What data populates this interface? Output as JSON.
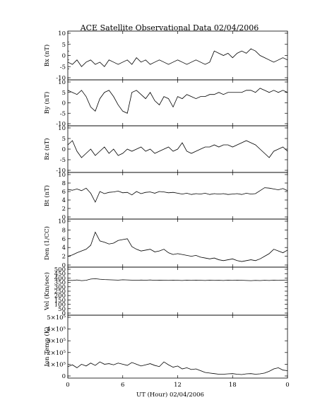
{
  "chart_data": {
    "type": "line",
    "title": "ACE Satellite Observational Data   02/04/2006",
    "xlabel": "UT (Hour)   02/04/2006",
    "x_ticks": [
      "0",
      "6",
      "12",
      "18",
      "0"
    ],
    "xlim": [
      0,
      24
    ],
    "grid": false,
    "line_color": "#000000",
    "panels": [
      {
        "name": "bx",
        "ylabel": "Bx (nT)",
        "ylim": [
          -10,
          10
        ],
        "yticks": [
          -10,
          -5,
          0,
          5,
          10
        ],
        "ytick_labels": [
          "-10",
          "-5",
          "0",
          "5",
          "10"
        ],
        "minor_ticks": [
          -6,
          -2,
          2,
          6
        ],
        "x": [
          0,
          0.5,
          1,
          1.5,
          2,
          2.5,
          3,
          3.5,
          4,
          4.5,
          5,
          5.5,
          6,
          6.5,
          7,
          7.5,
          8,
          8.5,
          9,
          9.5,
          10,
          10.5,
          11,
          11.5,
          12,
          12.5,
          13,
          13.5,
          14,
          14.5,
          15,
          15.5,
          16,
          16.5,
          17,
          17.5,
          18,
          18.5,
          19,
          19.5,
          20,
          20.5,
          21,
          21.5,
          22,
          22.5,
          23,
          23.5,
          24
        ],
        "values": [
          -3,
          -4,
          -2,
          -5,
          -3,
          -2,
          -4,
          -3,
          -5,
          -2,
          -3,
          -4,
          -3,
          -2,
          -4,
          -1,
          -3,
          -2,
          -4,
          -3,
          -2,
          -3,
          -4,
          -3,
          -2,
          -3,
          -4,
          -3,
          -2,
          -3,
          -4,
          -3,
          2,
          1,
          0,
          1,
          -1,
          1,
          2,
          1,
          3,
          2,
          0,
          -1,
          -2,
          -3,
          -2,
          -1,
          -2
        ]
      },
      {
        "name": "by",
        "ylabel": "By (nT)",
        "ylim": [
          -10,
          10
        ],
        "yticks": [
          -10,
          -5,
          0,
          5,
          10
        ],
        "ytick_labels": [
          "-10",
          "-5",
          "0",
          "5",
          "10"
        ],
        "minor_ticks": [],
        "x": [
          0,
          0.5,
          1,
          1.5,
          2,
          2.5,
          3,
          3.5,
          4,
          4.5,
          5,
          5.5,
          6,
          6.5,
          7,
          7.5,
          8,
          8.5,
          9,
          9.5,
          10,
          10.5,
          11,
          11.5,
          12,
          12.5,
          13,
          13.5,
          14,
          14.5,
          15,
          15.5,
          16,
          16.5,
          17,
          17.5,
          18,
          18.5,
          19,
          19.5,
          20,
          20.5,
          21,
          21.5,
          22,
          22.5,
          23,
          23.5,
          24
        ],
        "values": [
          6,
          5,
          4,
          6,
          3,
          -2,
          -4,
          2,
          5,
          6,
          3,
          -1,
          -4,
          -5,
          5,
          6,
          4,
          2,
          5,
          1,
          -1,
          3,
          2,
          -2,
          3,
          2,
          4,
          3,
          2,
          3,
          3,
          4,
          4,
          5,
          4,
          5,
          5,
          5,
          5,
          6,
          6,
          5,
          7,
          6,
          5,
          6,
          5,
          6,
          5
        ]
      },
      {
        "name": "bz",
        "ylabel": "Bz (nT)",
        "ylim": [
          -10,
          10
        ],
        "yticks": [
          -10,
          -5,
          0,
          5,
          10
        ],
        "ytick_labels": [
          "-10",
          "-5",
          "0",
          "5",
          "10"
        ],
        "minor_ticks": [],
        "x": [
          0,
          0.5,
          1,
          1.5,
          2,
          2.5,
          3,
          3.5,
          4,
          4.5,
          5,
          5.5,
          6,
          6.5,
          7,
          7.5,
          8,
          8.5,
          9,
          9.5,
          10,
          10.5,
          11,
          11.5,
          12,
          12.5,
          13,
          13.5,
          14,
          14.5,
          15,
          15.5,
          16,
          16.5,
          17,
          17.5,
          18,
          18.5,
          19,
          19.5,
          20,
          20.5,
          21,
          21.5,
          22,
          22.5,
          23,
          23.5,
          24
        ],
        "values": [
          2,
          4,
          -1,
          -4,
          -2,
          0,
          -3,
          -1,
          1,
          -2,
          0,
          -3,
          -2,
          0,
          -1,
          0,
          1,
          -1,
          0,
          -2,
          -1,
          0,
          1,
          -1,
          0,
          3,
          -1,
          -2,
          -1,
          0,
          1,
          1,
          2,
          1,
          2,
          2,
          1,
          2,
          3,
          4,
          3,
          2,
          0,
          -2,
          -4,
          -1,
          0,
          1,
          -1
        ]
      },
      {
        "name": "bt",
        "ylabel": "Bt (nT)",
        "ylim": [
          0,
          10
        ],
        "yticks": [
          0,
          2,
          4,
          6,
          8,
          10
        ],
        "ytick_labels": [
          "0",
          "2",
          "4",
          "6",
          "8",
          "10"
        ],
        "minor_ticks": [],
        "x": [
          0,
          0.5,
          1,
          1.5,
          2,
          2.5,
          3,
          3.5,
          4,
          4.5,
          5,
          5.5,
          6,
          6.5,
          7,
          7.5,
          8,
          8.5,
          9,
          9.5,
          10,
          10.5,
          11,
          11.5,
          12,
          12.5,
          13,
          13.5,
          14,
          14.5,
          15,
          15.5,
          16,
          16.5,
          17,
          17.5,
          18,
          18.5,
          19,
          19.5,
          20,
          20.5,
          21,
          21.5,
          22,
          22.5,
          23,
          23.5,
          24
        ],
        "values": [
          6.5,
          6.3,
          6.6,
          6.2,
          6.8,
          5.6,
          3.5,
          6.0,
          5.5,
          5.8,
          5.9,
          6.1,
          5.7,
          5.8,
          5.2,
          6.0,
          5.5,
          5.8,
          5.9,
          5.6,
          6.0,
          5.9,
          5.7,
          5.8,
          5.6,
          5.4,
          5.6,
          5.3,
          5.5,
          5.4,
          5.6,
          5.3,
          5.5,
          5.4,
          5.5,
          5.3,
          5.4,
          5.5,
          5.3,
          5.6,
          5.4,
          5.5,
          6.2,
          6.9,
          6.8,
          6.6,
          6.4,
          6.7,
          6.2
        ]
      },
      {
        "name": "den",
        "ylabel": "Den (1/CC)",
        "ylim": [
          0,
          10
        ],
        "yticks": [
          0,
          2,
          4,
          6,
          8,
          10
        ],
        "ytick_labels": [
          "0",
          "2",
          "4",
          "6",
          "8",
          "10"
        ],
        "minor_ticks": [],
        "x": [
          0,
          0.5,
          1,
          1.5,
          2,
          2.5,
          3,
          3.5,
          4,
          4.5,
          5,
          5.5,
          6,
          6.5,
          7,
          7.5,
          8,
          8.5,
          9,
          9.5,
          10,
          10.5,
          11,
          11.5,
          12,
          12.5,
          13,
          13.5,
          14,
          14.5,
          15,
          15.5,
          16,
          16.5,
          17,
          17.5,
          18,
          18.5,
          19,
          19.5,
          20,
          20.5,
          21,
          21.5,
          22,
          22.5,
          23,
          23.5,
          24
        ],
        "values": [
          2.0,
          2.3,
          2.8,
          3.2,
          3.6,
          4.5,
          7.5,
          5.5,
          5.2,
          4.8,
          5.0,
          5.6,
          5.8,
          6.0,
          4.2,
          3.6,
          3.2,
          3.4,
          3.6,
          3.0,
          3.2,
          3.6,
          2.8,
          2.4,
          2.6,
          2.4,
          2.2,
          2.0,
          2.2,
          1.8,
          1.6,
          1.4,
          1.6,
          1.2,
          1.0,
          1.2,
          1.4,
          1.0,
          0.8,
          1.0,
          1.2,
          1.0,
          1.4,
          2.0,
          2.6,
          3.6,
          3.2,
          2.8,
          3.4
        ]
      },
      {
        "name": "vel",
        "ylabel": "Vel (Km/sec)",
        "ylim": [
          0,
          500
        ],
        "yticks": [
          0,
          50,
          100,
          150,
          200,
          250,
          300,
          350,
          400,
          450,
          500
        ],
        "ytick_labels": [
          "0",
          "50",
          "100",
          "150",
          "200",
          "250",
          "300",
          "350",
          "400",
          "450",
          "500"
        ],
        "minor_ticks": [],
        "x": [
          0,
          0.5,
          1,
          1.5,
          2,
          2.5,
          3,
          3.5,
          4,
          4.5,
          5,
          5.5,
          6,
          6.5,
          7,
          7.5,
          8,
          8.5,
          9,
          9.5,
          10,
          10.5,
          11,
          11.5,
          12,
          12.5,
          13,
          13.5,
          14,
          14.5,
          15,
          15.5,
          16,
          16.5,
          17,
          17.5,
          18,
          18.5,
          19,
          19.5,
          20,
          20.5,
          21,
          21.5,
          22,
          22.5,
          23,
          23.5,
          24
        ],
        "values": [
          375,
          372,
          378,
          370,
          374,
          388,
          392,
          386,
          382,
          380,
          378,
          376,
          380,
          378,
          376,
          374,
          377,
          375,
          378,
          374,
          376,
          375,
          373,
          376,
          374,
          372,
          375,
          373,
          376,
          374,
          372,
          375,
          373,
          374,
          372,
          375,
          373,
          376,
          374,
          372,
          370,
          373,
          371,
          374,
          372,
          375,
          373,
          376,
          378
        ]
      },
      {
        "name": "temp",
        "ylabel": "Ion Temp (K)",
        "ylim": [
          0,
          500000
        ],
        "yticks": [
          0,
          100000,
          200000,
          300000,
          400000,
          500000
        ],
        "ytick_labels": [
          "0",
          "1×10⁵",
          "2×10⁵",
          "3×10⁵",
          "4×10⁵",
          "5×10⁵"
        ],
        "minor_ticks": [],
        "x": [
          0,
          0.5,
          1,
          1.5,
          2,
          2.5,
          3,
          3.5,
          4,
          4.5,
          5,
          5.5,
          6,
          6.5,
          7,
          7.5,
          8,
          8.5,
          9,
          9.5,
          10,
          10.5,
          11,
          11.5,
          12,
          12.5,
          13,
          13.5,
          14,
          14.5,
          15,
          15.5,
          16,
          16.5,
          17,
          17.5,
          18,
          18.5,
          19,
          19.5,
          20,
          20.5,
          21,
          21.5,
          22,
          22.5,
          23,
          23.5,
          24
        ],
        "values": [
          80000,
          95000,
          70000,
          100000,
          85000,
          110000,
          90000,
          120000,
          100000,
          105000,
          95000,
          110000,
          100000,
          90000,
          115000,
          100000,
          85000,
          95000,
          105000,
          90000,
          80000,
          120000,
          95000,
          75000,
          85000,
          60000,
          70000,
          55000,
          60000,
          45000,
          30000,
          25000,
          20000,
          15000,
          15000,
          18000,
          20000,
          15000,
          12000,
          18000,
          20000,
          15000,
          18000,
          25000,
          40000,
          60000,
          70000,
          50000,
          45000
        ]
      }
    ]
  }
}
